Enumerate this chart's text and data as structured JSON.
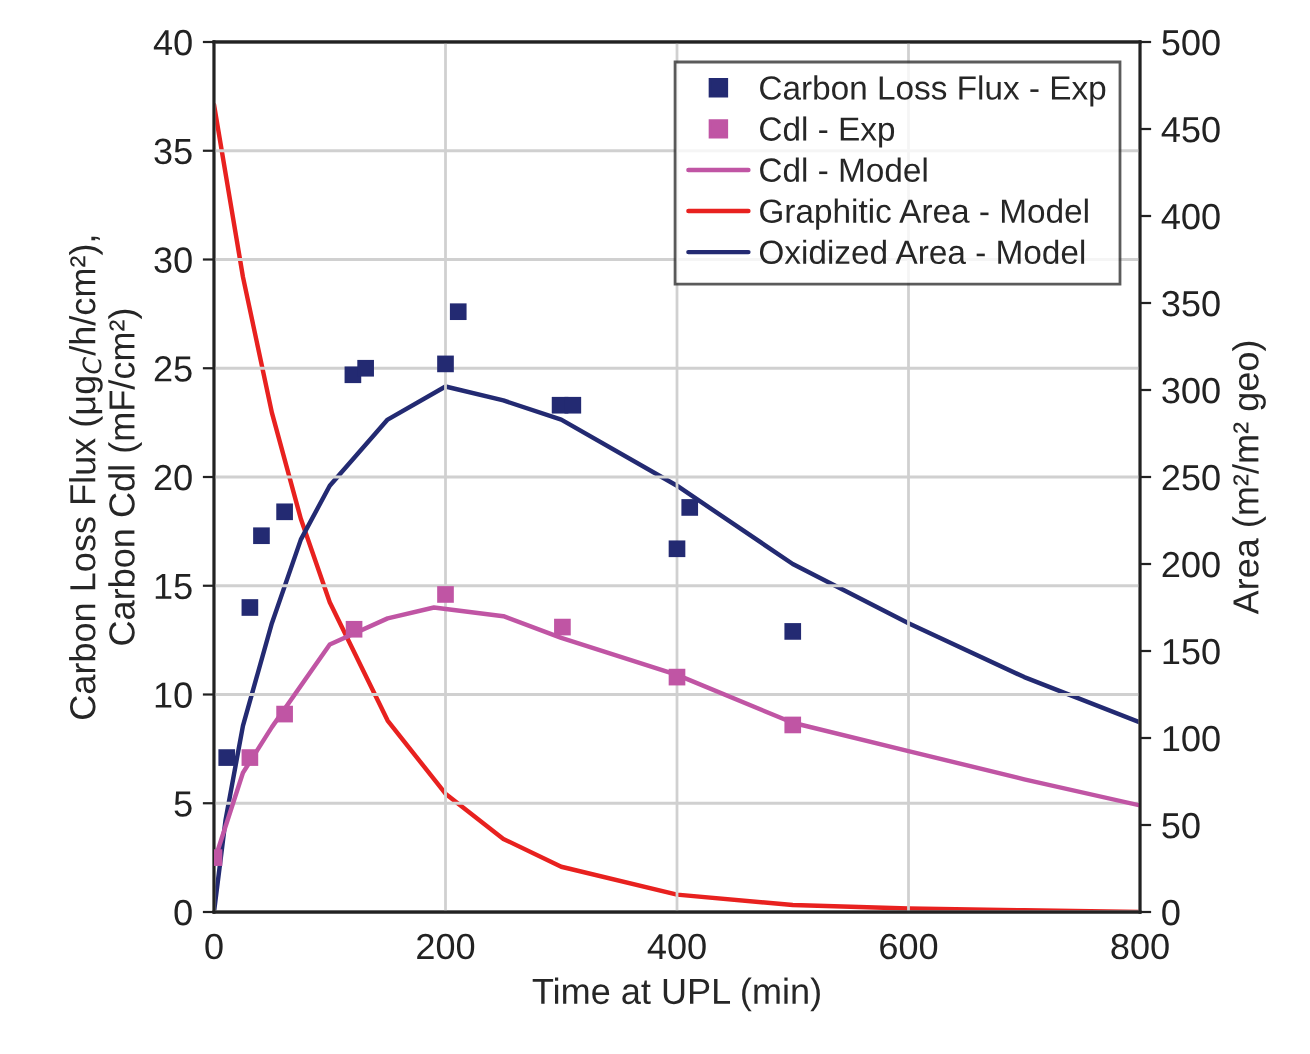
{
  "chart_data": {
    "type": "line",
    "xlabel": "Time at UPL (min)",
    "ylabel": "Carbon Loss Flux (μg$_{C}$/h/cm²),\nCarbon Cdl (mF/cm²)",
    "y2label": "Area (m²/m² geo)",
    "xlim": [
      0,
      800
    ],
    "xticks": [
      0,
      200,
      400,
      600,
      800
    ],
    "ylim": [
      0,
      40
    ],
    "yticks": [
      0,
      5,
      10,
      15,
      20,
      25,
      30,
      35,
      40
    ],
    "y2lim": [
      0,
      500
    ],
    "y2ticks": [
      0,
      50,
      100,
      150,
      200,
      250,
      300,
      350,
      400,
      450,
      500
    ],
    "grid": true,
    "legend": "top right",
    "series": [
      {
        "name": "Carbon Loss Flux - Exp",
        "type": "scatter",
        "marker": "square",
        "color": "#232a72",
        "x": [
          11,
          31,
          41,
          61,
          120,
          131,
          200,
          211,
          299,
          310,
          400,
          411,
          500
        ],
        "values": [
          7.1,
          14.0,
          17.3,
          18.4,
          24.7,
          25.0,
          25.2,
          27.6,
          23.3,
          23.3,
          16.7,
          18.6,
          12.9
        ]
      },
      {
        "name": "Cdl - Exp",
        "type": "scatter",
        "marker": "square",
        "color": "#c055a4",
        "x": [
          0,
          31,
          61,
          121,
          200,
          301,
          400,
          500
        ],
        "values": [
          2.5,
          7.1,
          9.1,
          13.0,
          14.6,
          13.1,
          10.8,
          8.6
        ]
      },
      {
        "name": "Cdl - Model",
        "marker": "none",
        "color": "#c055a4",
        "x": [
          0,
          25,
          50,
          100,
          150,
          190,
          250,
          300,
          400,
          500,
          600,
          700,
          800
        ],
        "values": [
          2.3,
          6.4,
          8.5,
          12.3,
          13.5,
          14.0,
          13.6,
          12.6,
          10.9,
          8.7,
          7.4,
          6.1,
          4.9
        ]
      },
      {
        "name": "Graphitic Area - Model",
        "marker": "none",
        "axis": "y2",
        "color": "#e8211f",
        "x": [
          0,
          25,
          50,
          75,
          100,
          150,
          200,
          250,
          300,
          400,
          500,
          600,
          700,
          800
        ],
        "values": [
          464,
          365,
          287,
          226,
          178,
          110,
          68,
          42,
          26,
          10,
          4,
          2,
          1,
          0
        ]
      },
      {
        "name": "Oxidized Area - Model",
        "marker": "none",
        "axis": "y2",
        "color": "#232a72",
        "x": [
          0,
          10,
          25,
          50,
          75,
          100,
          150,
          200,
          250,
          300,
          400,
          500,
          600,
          700,
          800
        ],
        "values": [
          0,
          53,
          107,
          166,
          214,
          245,
          283,
          302,
          294,
          283,
          245,
          200,
          166,
          135,
          109
        ]
      }
    ]
  }
}
